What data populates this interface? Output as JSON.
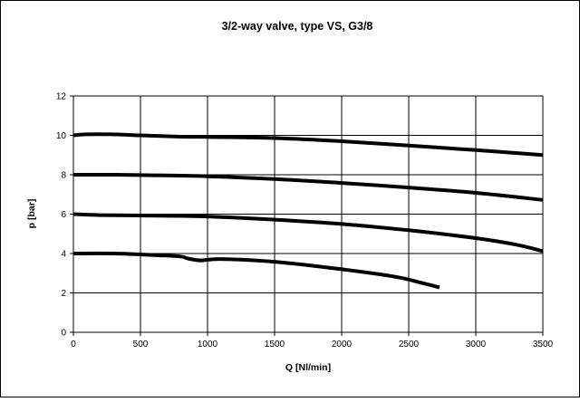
{
  "chart_data": {
    "type": "line",
    "title": "3/2-way valve, type VS, G3/8",
    "xlabel": "Q [Nl/min]",
    "ylabel": "p [bar]",
    "xlim": [
      0,
      3500
    ],
    "ylim": [
      0,
      12
    ],
    "xticks": [
      "0",
      "500",
      "1000",
      "1500",
      "2000",
      "2500",
      "3000",
      "3500"
    ],
    "yticks": [
      "0",
      "2",
      "4",
      "6",
      "8",
      "10",
      "12"
    ],
    "grid": true,
    "series": [
      {
        "x": [
          0,
          100,
          300,
          500,
          800,
          1000,
          1500,
          2000,
          2500,
          3000,
          3500
        ],
        "y": [
          10.0,
          10.05,
          10.05,
          10.0,
          9.93,
          9.92,
          9.86,
          9.7,
          9.48,
          9.25,
          9.0
        ]
      },
      {
        "x": [
          0,
          300,
          500,
          1000,
          1500,
          2000,
          2500,
          3000,
          3500
        ],
        "y": [
          8.0,
          8.0,
          7.98,
          7.92,
          7.78,
          7.58,
          7.35,
          7.08,
          6.72
        ]
      },
      {
        "x": [
          0,
          200,
          500,
          1000,
          1500,
          2000,
          2500,
          3000,
          3300,
          3500
        ],
        "y": [
          6.0,
          5.95,
          5.93,
          5.88,
          5.72,
          5.5,
          5.18,
          4.78,
          4.45,
          4.12
        ]
      },
      {
        "x": [
          0,
          300,
          600,
          800,
          850,
          950,
          1100,
          1500,
          2000,
          2400,
          2600,
          2730
        ],
        "y": [
          4.0,
          4.0,
          3.92,
          3.85,
          3.75,
          3.65,
          3.72,
          3.58,
          3.2,
          2.82,
          2.5,
          2.28
        ]
      }
    ]
  }
}
